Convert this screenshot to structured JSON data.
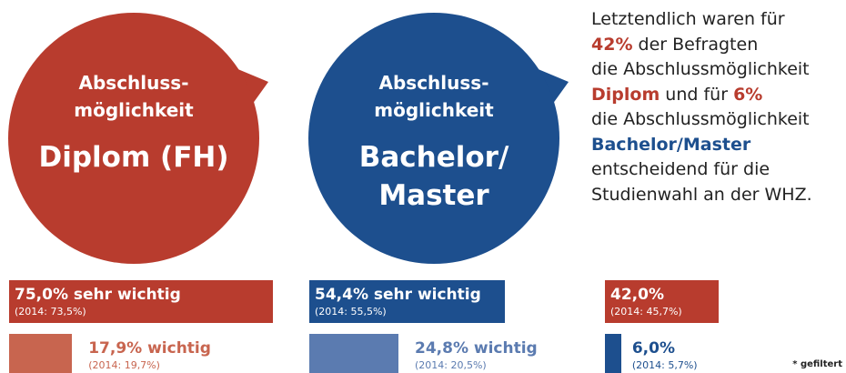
{
  "bubbles": [
    {
      "lines": [
        "Abschluss-",
        "möglichkeit"
      ],
      "title": [
        "Diplom (FH)"
      ],
      "color": "#b83c2e"
    },
    {
      "lines": [
        "Abschluss-",
        "möglichkeit"
      ],
      "title": [
        "Bachelor/",
        "Master"
      ],
      "color": "#1d4f8e"
    }
  ],
  "paragraph": [
    [
      {
        "text": "Letztendlich waren für"
      }
    ],
    [
      {
        "text": "42%",
        "color": "#b83c2e"
      },
      {
        "text": " der Befragten"
      }
    ],
    [
      {
        "text": "die Abschlussmöglichkeit"
      }
    ],
    [
      {
        "text": "Diplom",
        "color": "#b83c2e"
      },
      {
        "text": " und für "
      },
      {
        "text": "6%",
        "color": "#b83c2e"
      }
    ],
    [
      {
        "text": "die Abschlussmöglichkeit"
      }
    ],
    [
      {
        "text": "Bachelor/Master",
        "color": "#1d4f8e"
      }
    ],
    [
      {
        "text": "entscheidend für die"
      }
    ],
    [
      {
        "text": "Studienwahl an der WHZ."
      }
    ]
  ],
  "panels": [
    {
      "bars": [
        {
          "value": 75.0,
          "label": "75,0% sehr wichtig",
          "sub": "(2014: 73,5%)",
          "color": "#b83c2e"
        },
        {
          "value": 17.9,
          "label": "17,9% wichtig",
          "sub": "(2014: 19,7%)",
          "color": "#c8654f"
        }
      ]
    },
    {
      "bars": [
        {
          "value": 54.4,
          "label": "54,4% sehr wichtig",
          "sub": "(2014: 55,5%)",
          "color": "#1d4f8e"
        },
        {
          "value": 24.8,
          "label": "24,8% wichtig",
          "sub": "(2014: 20,5%)",
          "color": "#5b7bb0"
        }
      ]
    },
    {
      "bars": [
        {
          "value": 42.0,
          "label": "42,0%",
          "sub": "(2014: 45,7%)",
          "color": "#b83c2e"
        },
        {
          "value": 6.0,
          "label": "6,0%",
          "sub": "(2014: 5,7%)",
          "color": "#1d4f8e"
        }
      ]
    }
  ],
  "footnote": "* gefiltert"
}
